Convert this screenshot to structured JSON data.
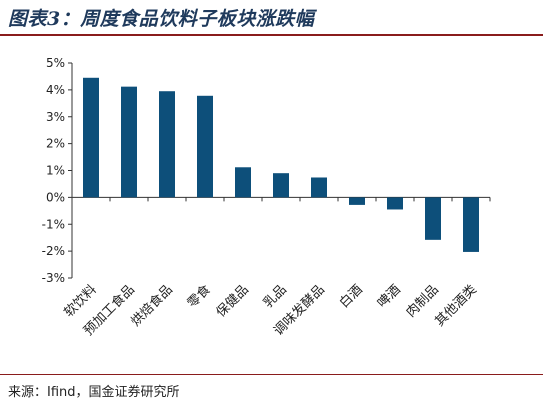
{
  "title": "图表3：周度食品饮料子板块涨跌幅",
  "source": "来源：Ifind，国金证券研究所",
  "chart_data": {
    "type": "bar",
    "title": "图表3：周度食品饮料子板块涨跌幅",
    "xlabel": "",
    "ylabel": "",
    "categories": [
      "软饮料",
      "预加工食品",
      "烘焙食品",
      "零食",
      "保健品",
      "乳品",
      "调味发酵品",
      "白酒",
      "啤酒",
      "肉制品",
      "其他酒类"
    ],
    "values": [
      4.45,
      4.12,
      3.95,
      3.78,
      1.12,
      0.9,
      0.74,
      -0.28,
      -0.45,
      -1.58,
      -2.03
    ],
    "ylim": [
      -3,
      5
    ],
    "yticks": [
      -3,
      -2,
      -1,
      0,
      1,
      2,
      3,
      4,
      5
    ],
    "ytick_format": "%",
    "bar_color": "#0d4f7a",
    "grid": false,
    "legend": "none"
  }
}
